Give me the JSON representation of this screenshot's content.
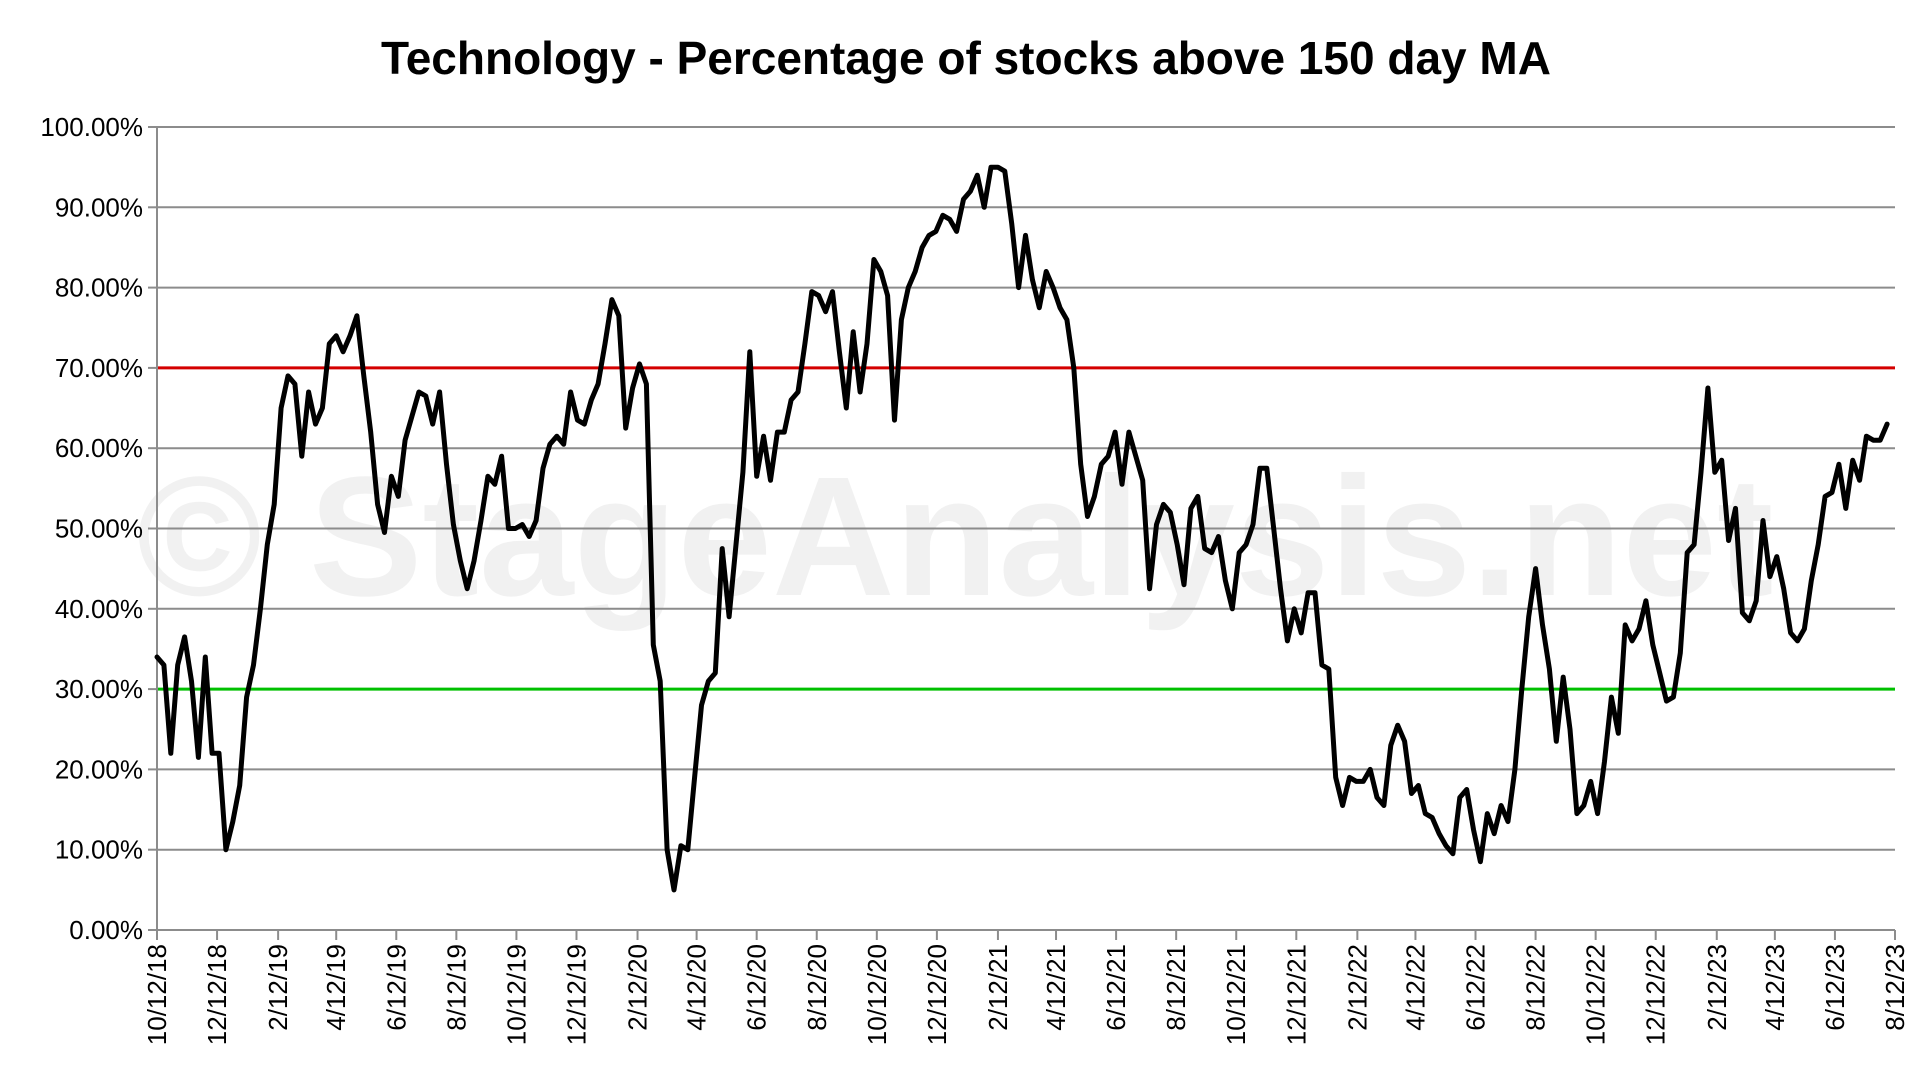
{
  "chart_data": {
    "type": "line",
    "title": "Technology - Percentage of stocks above 150 day MA",
    "watermark": "© StageAnalysis.net",
    "xlabel": "",
    "ylabel": "",
    "x_range": [
      "10/12/18",
      "8/12/23"
    ],
    "ylim": [
      0,
      100
    ],
    "y_ticks": [
      "0.00%",
      "10.00%",
      "20.00%",
      "30.00%",
      "40.00%",
      "50.00%",
      "60.00%",
      "70.00%",
      "80.00%",
      "90.00%",
      "100.00%"
    ],
    "x_ticks": [
      "10/12/18",
      "12/12/18",
      "2/12/19",
      "4/12/19",
      "6/12/19",
      "8/12/19",
      "10/12/19",
      "12/12/19",
      "2/12/20",
      "4/12/20",
      "6/12/20",
      "8/12/20",
      "10/12/20",
      "12/12/20",
      "2/12/21",
      "4/12/21",
      "6/12/21",
      "8/12/21",
      "10/12/21",
      "12/12/21",
      "2/12/22",
      "4/12/22",
      "6/12/22",
      "8/12/22",
      "10/12/22",
      "12/12/22",
      "2/12/23",
      "4/12/23",
      "6/12/23",
      "8/12/23"
    ],
    "grid": true,
    "legend": "none",
    "reference_lines": [
      {
        "value": 70,
        "color": "#d40000"
      },
      {
        "value": 30,
        "color": "#00c000"
      }
    ],
    "series": [
      {
        "color": "#000000",
        "points": [
          [
            "10/12/18",
            34
          ],
          [
            "10/19/18",
            33
          ],
          [
            "10/26/18",
            22
          ],
          [
            "11/2/18",
            33
          ],
          [
            "11/9/18",
            36.5
          ],
          [
            "11/16/18",
            31
          ],
          [
            "11/23/18",
            21.5
          ],
          [
            "11/30/18",
            34
          ],
          [
            "12/7/18",
            22
          ],
          [
            "12/14/18",
            22
          ],
          [
            "12/21/18",
            10
          ],
          [
            "12/28/18",
            13.5
          ],
          [
            "1/4/19",
            18
          ],
          [
            "1/11/19",
            29
          ],
          [
            "1/18/19",
            33
          ],
          [
            "1/25/19",
            40
          ],
          [
            "2/1/19",
            48
          ],
          [
            "2/8/19",
            53
          ],
          [
            "2/15/19",
            65
          ],
          [
            "2/22/19",
            69
          ],
          [
            "3/1/19",
            68
          ],
          [
            "3/8/19",
            59
          ],
          [
            "3/15/19",
            67
          ],
          [
            "3/22/19",
            63
          ],
          [
            "3/29/19",
            65
          ],
          [
            "4/5/19",
            73
          ],
          [
            "4/12/19",
            74
          ],
          [
            "4/19/19",
            72
          ],
          [
            "4/26/19",
            74
          ],
          [
            "5/3/19",
            76.5
          ],
          [
            "5/10/19",
            69
          ],
          [
            "5/17/19",
            62
          ],
          [
            "5/24/19",
            53
          ],
          [
            "5/31/19",
            49.5
          ],
          [
            "6/7/19",
            56.5
          ],
          [
            "6/14/19",
            54
          ],
          [
            "6/21/19",
            61
          ],
          [
            "6/28/19",
            64
          ],
          [
            "7/5/19",
            67
          ],
          [
            "7/12/19",
            66.5
          ],
          [
            "7/19/19",
            63
          ],
          [
            "7/26/19",
            67
          ],
          [
            "8/2/19",
            58
          ],
          [
            "8/9/19",
            50.5
          ],
          [
            "8/16/19",
            46
          ],
          [
            "8/23/19",
            42.5
          ],
          [
            "8/30/19",
            46
          ],
          [
            "9/6/19",
            51
          ],
          [
            "9/13/19",
            56.5
          ],
          [
            "9/20/19",
            55.5
          ],
          [
            "9/27/19",
            59
          ],
          [
            "10/4/19",
            50
          ],
          [
            "10/11/19",
            50
          ],
          [
            "10/18/19",
            50.5
          ],
          [
            "10/25/19",
            49
          ],
          [
            "11/1/19",
            51
          ],
          [
            "11/8/19",
            57.5
          ],
          [
            "11/15/19",
            60.5
          ],
          [
            "11/22/19",
            61.5
          ],
          [
            "11/29/19",
            60.5
          ],
          [
            "12/6/19",
            67
          ],
          [
            "12/13/19",
            63.5
          ],
          [
            "12/20/19",
            63
          ],
          [
            "12/27/19",
            66
          ],
          [
            "1/3/20",
            68
          ],
          [
            "1/10/20",
            73
          ],
          [
            "1/17/20",
            78.5
          ],
          [
            "1/24/20",
            76.5
          ],
          [
            "1/31/20",
            62.5
          ],
          [
            "2/7/20",
            67.5
          ],
          [
            "2/14/20",
            70.5
          ],
          [
            "2/21/20",
            68
          ],
          [
            "2/28/20",
            35.5
          ],
          [
            "3/6/20",
            31
          ],
          [
            "3/13/20",
            10
          ],
          [
            "3/20/20",
            5
          ],
          [
            "3/27/20",
            10.5
          ],
          [
            "4/3/20",
            10
          ],
          [
            "4/10/20",
            19
          ],
          [
            "4/17/20",
            28
          ],
          [
            "4/24/20",
            31
          ],
          [
            "5/1/20",
            32
          ],
          [
            "5/8/20",
            47.5
          ],
          [
            "5/15/20",
            39
          ],
          [
            "5/22/20",
            48
          ],
          [
            "5/29/20",
            57
          ],
          [
            "6/5/20",
            72
          ],
          [
            "6/12/20",
            56.5
          ],
          [
            "6/19/20",
            61.5
          ],
          [
            "6/26/20",
            56
          ],
          [
            "7/3/20",
            62
          ],
          [
            "7/10/20",
            62
          ],
          [
            "7/17/20",
            66
          ],
          [
            "7/24/20",
            67
          ],
          [
            "7/31/20",
            73
          ],
          [
            "8/7/20",
            79.5
          ],
          [
            "8/14/20",
            79
          ],
          [
            "8/21/20",
            77
          ],
          [
            "8/28/20",
            79.5
          ],
          [
            "9/4/20",
            72
          ],
          [
            "9/11/20",
            65
          ],
          [
            "9/18/20",
            74.5
          ],
          [
            "9/25/20",
            67
          ],
          [
            "10/2/20",
            73
          ],
          [
            "10/9/20",
            83.5
          ],
          [
            "10/16/20",
            82
          ],
          [
            "10/23/20",
            79
          ],
          [
            "10/30/20",
            63.5
          ],
          [
            "11/6/20",
            76
          ],
          [
            "11/13/20",
            80
          ],
          [
            "11/20/20",
            82
          ],
          [
            "11/27/20",
            85
          ],
          [
            "12/4/20",
            86.5
          ],
          [
            "12/11/20",
            87
          ],
          [
            "12/18/20",
            89
          ],
          [
            "12/25/20",
            88.5
          ],
          [
            "1/1/21",
            87
          ],
          [
            "1/8/21",
            91
          ],
          [
            "1/15/21",
            92
          ],
          [
            "1/22/21",
            94
          ],
          [
            "1/29/21",
            90
          ],
          [
            "2/5/21",
            95
          ],
          [
            "2/12/21",
            95
          ],
          [
            "2/19/21",
            94.5
          ],
          [
            "2/26/21",
            88
          ],
          [
            "3/5/21",
            80
          ],
          [
            "3/12/21",
            86.5
          ],
          [
            "3/19/21",
            81
          ],
          [
            "3/26/21",
            77.5
          ],
          [
            "4/2/21",
            82
          ],
          [
            "4/9/21",
            80
          ],
          [
            "4/16/21",
            77.5
          ],
          [
            "4/23/21",
            76
          ],
          [
            "4/30/21",
            70
          ],
          [
            "5/7/21",
            58
          ],
          [
            "5/14/21",
            51.5
          ],
          [
            "5/21/21",
            54
          ],
          [
            "5/28/21",
            58
          ],
          [
            "6/4/21",
            59
          ],
          [
            "6/11/21",
            62
          ],
          [
            "6/18/21",
            55.5
          ],
          [
            "6/25/21",
            62
          ],
          [
            "7/2/21",
            59
          ],
          [
            "7/9/21",
            56
          ],
          [
            "7/16/21",
            42.5
          ],
          [
            "7/23/21",
            50.5
          ],
          [
            "7/30/21",
            53
          ],
          [
            "8/6/21",
            52
          ],
          [
            "8/13/21",
            48
          ],
          [
            "8/20/21",
            43
          ],
          [
            "8/27/21",
            52.5
          ],
          [
            "9/3/21",
            54
          ],
          [
            "9/10/21",
            47.5
          ],
          [
            "9/17/21",
            47
          ],
          [
            "9/24/21",
            49
          ],
          [
            "10/1/21",
            43.5
          ],
          [
            "10/8/21",
            40
          ],
          [
            "10/15/21",
            47
          ],
          [
            "10/22/21",
            48
          ],
          [
            "10/29/21",
            50.5
          ],
          [
            "11/5/21",
            57.5
          ],
          [
            "11/12/21",
            57.5
          ],
          [
            "11/19/21",
            50
          ],
          [
            "11/26/21",
            42.5
          ],
          [
            "12/3/21",
            36
          ],
          [
            "12/10/21",
            40
          ],
          [
            "12/17/21",
            37
          ],
          [
            "12/24/21",
            42
          ],
          [
            "12/31/21",
            42
          ],
          [
            "1/7/22",
            33
          ],
          [
            "1/14/22",
            32.5
          ],
          [
            "1/21/22",
            19
          ],
          [
            "1/28/22",
            15.5
          ],
          [
            "2/4/22",
            19
          ],
          [
            "2/11/22",
            18.5
          ],
          [
            "2/18/22",
            18.5
          ],
          [
            "2/25/22",
            20
          ],
          [
            "3/4/22",
            16.5
          ],
          [
            "3/11/22",
            15.5
          ],
          [
            "3/18/22",
            23
          ],
          [
            "3/25/22",
            25.5
          ],
          [
            "4/1/22",
            23.5
          ],
          [
            "4/8/22",
            17
          ],
          [
            "4/15/22",
            18
          ],
          [
            "4/22/22",
            14.5
          ],
          [
            "4/29/22",
            14
          ],
          [
            "5/6/22",
            12
          ],
          [
            "5/13/22",
            10.5
          ],
          [
            "5/20/22",
            9.5
          ],
          [
            "5/27/22",
            16.5
          ],
          [
            "6/3/22",
            17.5
          ],
          [
            "6/10/22",
            12.5
          ],
          [
            "6/17/22",
            8.5
          ],
          [
            "6/24/22",
            14.5
          ],
          [
            "7/1/22",
            12
          ],
          [
            "7/8/22",
            15.5
          ],
          [
            "7/15/22",
            13.5
          ],
          [
            "7/22/22",
            20
          ],
          [
            "7/29/22",
            30
          ],
          [
            "8/5/22",
            39
          ],
          [
            "8/12/22",
            45
          ],
          [
            "8/19/22",
            38
          ],
          [
            "8/26/22",
            32.5
          ],
          [
            "9/2/22",
            23.5
          ],
          [
            "9/9/22",
            31.5
          ],
          [
            "9/16/22",
            25
          ],
          [
            "9/23/22",
            14.5
          ],
          [
            "9/30/22",
            15.5
          ],
          [
            "10/7/22",
            18.5
          ],
          [
            "10/14/22",
            14.5
          ],
          [
            "10/21/22",
            21
          ],
          [
            "10/28/22",
            29
          ],
          [
            "11/4/22",
            24.5
          ],
          [
            "11/11/22",
            38
          ],
          [
            "11/18/22",
            36
          ],
          [
            "11/25/22",
            37.5
          ],
          [
            "12/2/22",
            41
          ],
          [
            "12/9/22",
            35.5
          ],
          [
            "12/16/22",
            32
          ],
          [
            "12/23/22",
            28.5
          ],
          [
            "12/30/22",
            29
          ],
          [
            "1/6/23",
            34.5
          ],
          [
            "1/13/23",
            47
          ],
          [
            "1/20/23",
            48
          ],
          [
            "1/27/23",
            57
          ],
          [
            "2/3/23",
            67.5
          ],
          [
            "2/10/23",
            57
          ],
          [
            "2/17/23",
            58.5
          ],
          [
            "2/24/23",
            48.5
          ],
          [
            "3/3/23",
            52.5
          ],
          [
            "3/10/23",
            39.5
          ],
          [
            "3/17/23",
            38.5
          ],
          [
            "3/24/23",
            41
          ],
          [
            "3/31/23",
            51
          ],
          [
            "4/7/23",
            44
          ],
          [
            "4/14/23",
            46.5
          ],
          [
            "4/21/23",
            42.5
          ],
          [
            "4/28/23",
            37
          ],
          [
            "5/5/23",
            36
          ],
          [
            "5/12/23",
            37.5
          ],
          [
            "5/19/23",
            43.5
          ],
          [
            "5/26/23",
            48
          ],
          [
            "6/2/23",
            54
          ],
          [
            "6/9/23",
            54.5
          ],
          [
            "6/16/23",
            58
          ],
          [
            "6/23/23",
            52.5
          ],
          [
            "6/30/23",
            58.5
          ],
          [
            "7/7/23",
            56
          ],
          [
            "7/14/23",
            61.5
          ],
          [
            "7/21/23",
            61
          ],
          [
            "7/28/23",
            61
          ],
          [
            "8/4/23",
            63
          ]
        ]
      }
    ]
  }
}
